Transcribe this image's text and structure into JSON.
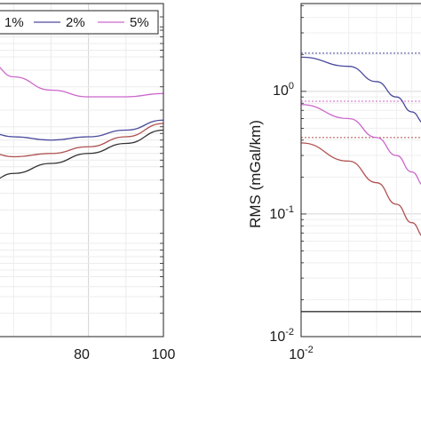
{
  "chart_data": [
    {
      "type": "line",
      "title": "",
      "xlabel": "",
      "ylabel": "",
      "xlim": [
        null,
        100
      ],
      "xticks": [
        "80",
        "100"
      ],
      "grid": true,
      "legend": {
        "placement": "top",
        "entries": [
          "1%",
          "2%",
          "5%"
        ]
      },
      "series": [
        {
          "name": "5%",
          "color": "#cc66cc",
          "x": [
            54,
            60,
            70,
            80,
            90,
            100
          ],
          "y_rel": [
            0.82,
            0.78,
            0.74,
            0.72,
            0.72,
            0.73
          ]
        },
        {
          "name": "2%",
          "color": "#4a4a9e",
          "x": [
            54,
            60,
            70,
            80,
            90,
            100
          ],
          "y_rel": [
            0.61,
            0.6,
            0.59,
            0.6,
            0.62,
            0.65
          ]
        },
        {
          "name": "",
          "color": "#b05050",
          "x": [
            54,
            60,
            70,
            80,
            90,
            100
          ],
          "y_rel": [
            0.55,
            0.54,
            0.55,
            0.57,
            0.6,
            0.64
          ]
        },
        {
          "name": "1%",
          "color": "#333333",
          "x": [
            54,
            60,
            70,
            80,
            90,
            100
          ],
          "y_rel": [
            0.47,
            0.49,
            0.52,
            0.55,
            0.58,
            0.62
          ]
        }
      ]
    },
    {
      "type": "line",
      "title": "",
      "xlabel": "",
      "ylabel": "RMS (mGal/km)",
      "xscale": "log",
      "yscale": "log",
      "xlim": [
        0.01,
        null
      ],
      "ylim": [
        0.01,
        5
      ],
      "yticks": [
        "10^-2",
        "10^-1",
        "10^0"
      ],
      "xticks": [
        "10^-2"
      ],
      "grid": true,
      "series": [
        {
          "name": "2%",
          "color": "#4a4a9e",
          "x": [
            0.01,
            0.02,
            0.03,
            0.04,
            0.05,
            0.06
          ],
          "y": [
            1.9,
            1.6,
            1.2,
            0.9,
            0.68,
            0.55
          ]
        },
        {
          "name": "5%",
          "color": "#cc66cc",
          "x": [
            0.01,
            0.02,
            0.03,
            0.04,
            0.05,
            0.06
          ],
          "y": [
            0.78,
            0.6,
            0.42,
            0.3,
            0.22,
            0.17
          ]
        },
        {
          "name": "",
          "color": "#b05050",
          "x": [
            0.01,
            0.02,
            0.03,
            0.04,
            0.05,
            0.06
          ],
          "y": [
            0.38,
            0.27,
            0.18,
            0.12,
            0.085,
            0.065
          ]
        },
        {
          "name": "1%",
          "color": "#333333",
          "x": [
            0.01,
            0.06
          ],
          "y": [
            0.016,
            0.016
          ]
        }
      ],
      "reference_lines": [
        {
          "color": "#4a4a9e",
          "y": 2.05,
          "style": "dotted"
        },
        {
          "color": "#cc66cc",
          "y": 0.83,
          "style": "dotted"
        },
        {
          "color": "#b05050",
          "y": 0.42,
          "style": "dotted"
        }
      ]
    }
  ],
  "right_plot": {
    "ylabel": "RMS (mGal/km)",
    "y_tick_bases": [
      "10",
      "10",
      "10"
    ],
    "y_tick_exps": [
      "-2",
      "-1",
      "0"
    ],
    "x_tick_base": "10",
    "x_tick_exp": "-2"
  },
  "left_plot": {
    "x_tick_labels": [
      "80",
      "100"
    ],
    "legend_labels": [
      "1%",
      "2%",
      "5%"
    ]
  }
}
